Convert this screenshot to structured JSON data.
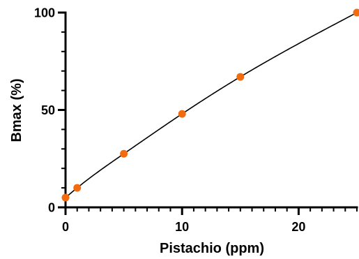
{
  "chart_data": {
    "type": "scatter",
    "title": "",
    "xlabel": "Pistachio (ppm)",
    "ylabel": "Bmax (%)",
    "xlim": [
      0,
      25
    ],
    "ylim": [
      0,
      100
    ],
    "x_ticks": [
      0,
      10,
      20
    ],
    "x_tick_labels": [
      "0",
      "10",
      "20"
    ],
    "x_minor_step": 1,
    "y_ticks": [
      0,
      50,
      100
    ],
    "y_tick_labels": [
      "0",
      "50",
      "100"
    ],
    "y_minor_step": 10,
    "grid": false,
    "legend": "none",
    "series": [
      {
        "x": [
          0,
          1,
          5,
          10,
          15,
          25
        ],
        "y": [
          5,
          10,
          27.5,
          48,
          67,
          100
        ],
        "marker_color": "#f26b0f",
        "fit_line": true,
        "fit_color": "#000000"
      }
    ]
  }
}
